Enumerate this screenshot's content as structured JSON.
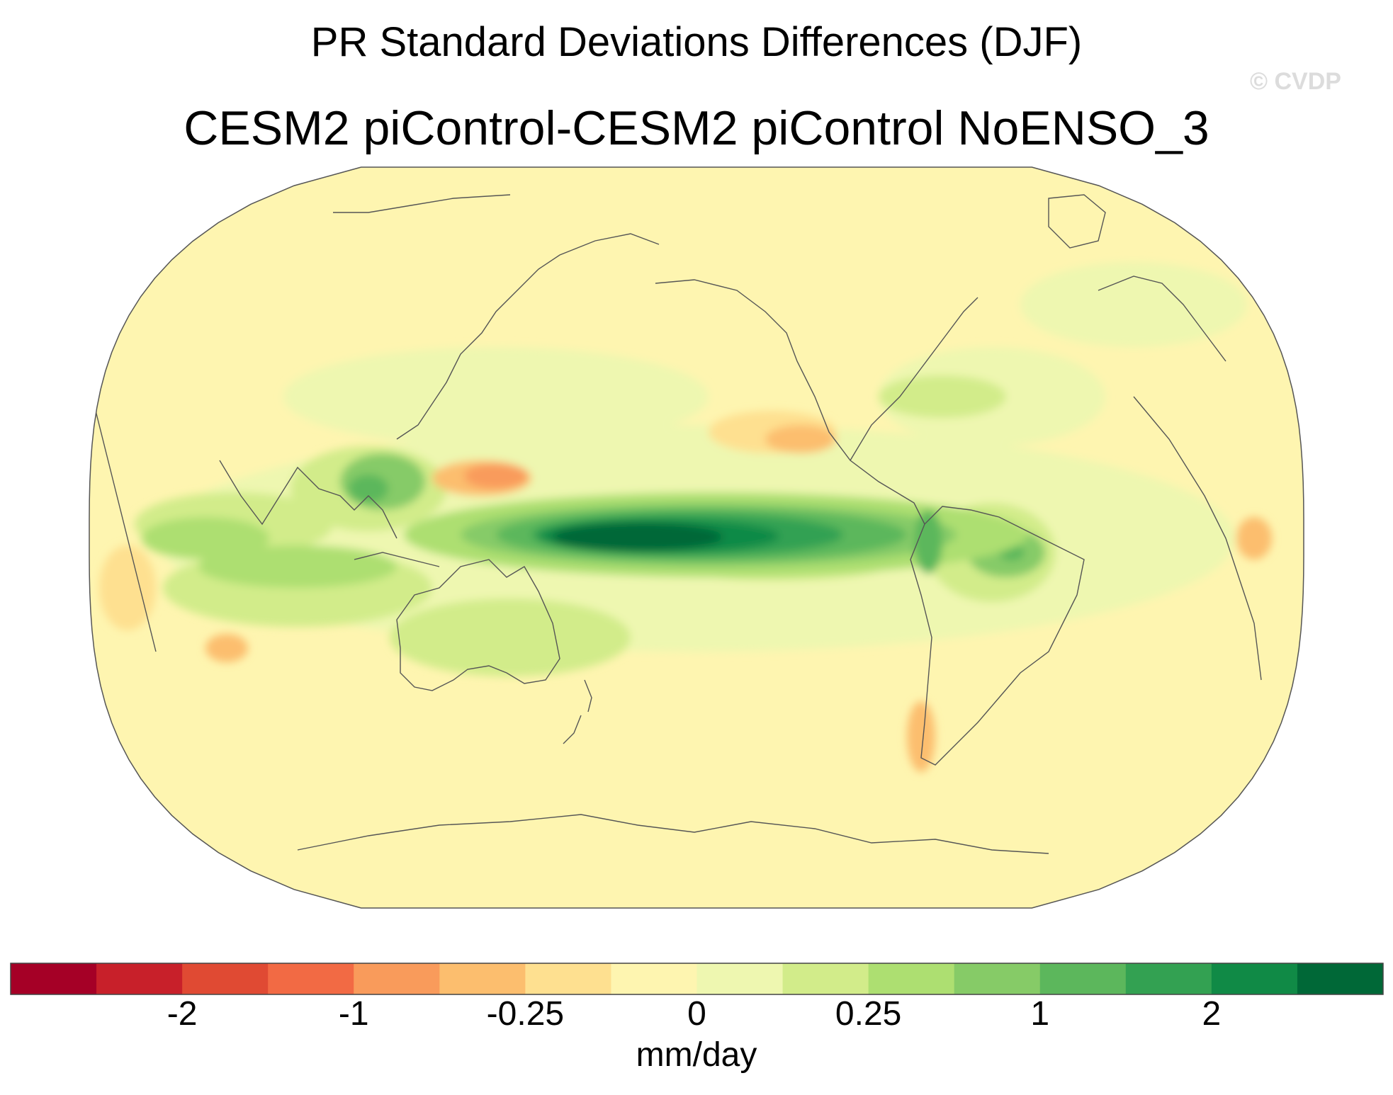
{
  "title": "PR Standard Deviations Differences (DJF)",
  "subtitle": "CESM2 piControl-CESM2 piControl NoENSO_3",
  "watermark": "© CVDP",
  "colorbar": {
    "units": "mm/day",
    "colors": [
      "#a50026",
      "#c8202a",
      "#e04a33",
      "#f26a44",
      "#f99b5b",
      "#fcbe6e",
      "#fee090",
      "#fef5b0",
      "#eef7b0",
      "#d2ec8a",
      "#addf71",
      "#86cb67",
      "#5cb75c",
      "#33a152",
      "#108a46",
      "#006837"
    ],
    "tick_labels": [
      "-2",
      "-1",
      "-0.25",
      "0",
      "0.25",
      "1",
      "2"
    ]
  },
  "map": {
    "projection": "Robinson (Pacific-centered)",
    "field": "precipitation standard deviation difference",
    "season": "DJF"
  }
}
